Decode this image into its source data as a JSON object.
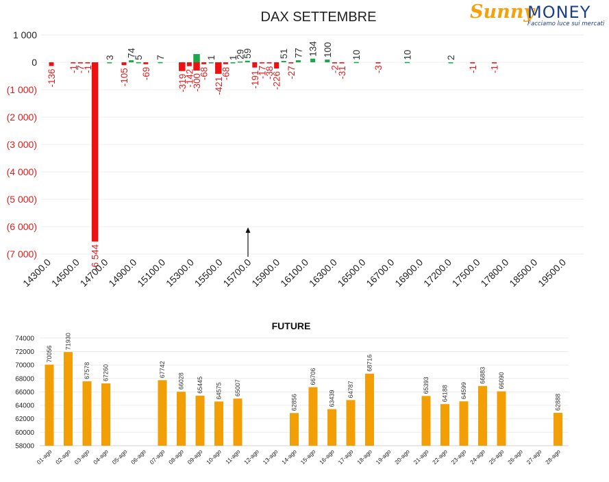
{
  "logo": {
    "word1": "Sunny",
    "word2": "MONEY",
    "tagline": "Facciamo luce sui mercati"
  },
  "colors": {
    "negative": "#ee1111",
    "positive": "#1aa84b",
    "future": "#f29f05",
    "neg_label": "#e02020",
    "pos_label": "#333333"
  },
  "chart_data": [
    {
      "type": "bar",
      "title": "DAX SETTEMBRE",
      "ylim": [
        -7000,
        1000
      ],
      "yticks": [
        1000,
        0,
        -1000,
        -2000,
        -3000,
        -4000,
        -5000,
        -6000,
        -7000
      ],
      "ytick_labels": [
        "1 000",
        "0",
        "(1 000)",
        "(2 000)",
        "(3 000)",
        "(4 000)",
        "(5 000)",
        "(6 000)",
        "(7 000)"
      ],
      "categories": [
        "14300.0",
        "14350.0",
        "14400.0",
        "14450.0",
        "14500.0",
        "14550.0",
        "14600.0",
        "14650.0",
        "14700.0",
        "14750.0",
        "14800.0",
        "14850.0",
        "14900.0",
        "14950.0",
        "15000.0",
        "15050.0",
        "15100.0",
        "15150.0",
        "15200.0",
        "15250.0",
        "15300.0",
        "15350.0",
        "15400.0",
        "15450.0",
        "15500.0",
        "15550.0",
        "15600.0",
        "15650.0",
        "15700.0",
        "15750.0",
        "15800.0",
        "15850.0",
        "15900.0",
        "15950.0",
        "16000.0",
        "16050.0",
        "16100.0",
        "16150.0",
        "16200.0",
        "16250.0",
        "16300.0",
        "16350.0",
        "16400.0",
        "16450.0",
        "16500.0",
        "16550.0",
        "16600.0",
        "16650.0",
        "16700.0",
        "16750.0",
        "16800.0",
        "16850.0",
        "16900.0",
        "17000.0",
        "17100.0",
        "17200.0",
        "17300.0",
        "17400.0",
        "17500.0",
        "17600.0",
        "17700.0",
        "17800.0",
        "18000.0",
        "18500.0",
        "19000.0",
        "19500.0"
      ],
      "x_tick_labels": [
        "14300.0",
        "14500.0",
        "14700.0",
        "14900.0",
        "15100.0",
        "15300.0",
        "15500.0",
        "15700.0",
        "15900.0",
        "16100.0",
        "16300.0",
        "16500.0",
        "16700.0",
        "16900.0",
        "17200.0",
        "17500.0",
        "17800.0",
        "18500.0",
        "19500.0"
      ],
      "series": [
        {
          "values": [
            -136,
            null,
            null,
            -1,
            -7,
            -1,
            -6544,
            null,
            3,
            null,
            -105,
            74,
            5,
            -69,
            null,
            7,
            null,
            null,
            -319,
            -142,
            -300,
            -68,
            1,
            -421,
            -68,
            1,
            29,
            59,
            -191,
            -17,
            -38,
            -226,
            51,
            -27,
            77,
            null,
            134,
            null,
            100,
            -2,
            -31,
            null,
            10,
            null,
            null,
            -3,
            null,
            null,
            null,
            10,
            null,
            null,
            null,
            null,
            null,
            2,
            null,
            null,
            -1,
            null,
            null,
            -1,
            null,
            null,
            null,
            null
          ]
        },
        {
          "values": [
            null,
            null,
            null,
            null,
            null,
            null,
            null,
            null,
            null,
            null,
            null,
            null,
            null,
            null,
            null,
            null,
            null,
            null,
            null,
            null,
            300,
            null,
            null,
            null,
            null,
            null,
            null,
            null,
            null,
            null,
            null,
            null,
            null,
            null,
            null,
            null,
            null,
            null,
            null,
            null,
            null,
            null,
            null,
            null,
            null,
            null,
            null,
            null,
            null,
            null,
            null,
            null,
            null,
            null,
            null,
            null,
            null,
            null,
            null,
            null,
            null,
            null,
            null,
            null,
            null,
            null
          ]
        }
      ],
      "data_labels": [
        "-136",
        "-1",
        "-7",
        "-1",
        "-6 544",
        "3",
        "-105",
        "74",
        "5",
        "-69",
        "7",
        "-319",
        "-142",
        "-300",
        "-68",
        "1",
        "-421",
        "-68",
        "1",
        "29",
        "59",
        "-191",
        "-17",
        "-38",
        "-226",
        "51",
        "-27",
        "77",
        "134",
        "100",
        "-2",
        "-31",
        "10",
        "-3",
        "10",
        "2",
        "-1",
        "-1"
      ]
    },
    {
      "type": "bar",
      "title": "FUTURE",
      "ylim": [
        58000,
        74000
      ],
      "yticks": [
        58000,
        60000,
        62000,
        64000,
        66000,
        68000,
        70000,
        72000,
        74000
      ],
      "categories": [
        "01-ago",
        "02-ago",
        "03-ago",
        "04-ago",
        "05-ago",
        "06-ago",
        "07-ago",
        "08-ago",
        "09-ago",
        "10-ago",
        "11-ago",
        "12-ago",
        "13-ago",
        "14-ago",
        "15-ago",
        "16-ago",
        "17-ago",
        "18-ago",
        "19-ago",
        "20-ago",
        "21-ago",
        "22-ago",
        "23-ago",
        "24-ago",
        "25-ago",
        "26-ago",
        "27-ago",
        "28-ago"
      ],
      "values": [
        70056,
        71930,
        67578,
        67260,
        null,
        null,
        67742,
        66028,
        65445,
        64575,
        65007,
        null,
        null,
        62856,
        66706,
        63439,
        64787,
        68716,
        null,
        null,
        65393,
        64188,
        64599,
        66883,
        66090,
        null,
        null,
        62888
      ]
    }
  ]
}
